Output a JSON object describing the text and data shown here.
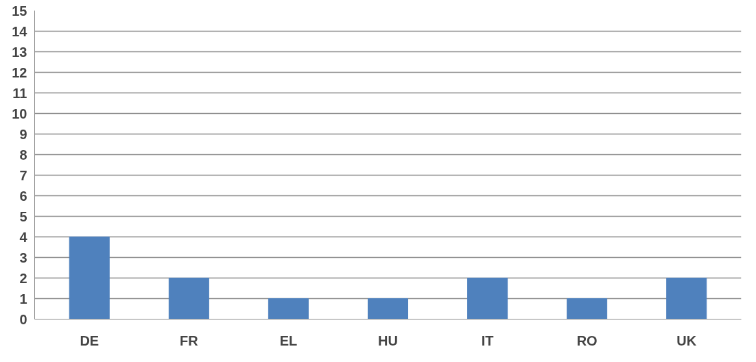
{
  "chart_data": {
    "type": "bar",
    "categories": [
      "DE",
      "FR",
      "EL",
      "HU",
      "IT",
      "RO",
      "UK"
    ],
    "values": [
      4,
      2,
      1,
      1,
      2,
      1,
      2
    ],
    "color": "#4f81bd",
    "ylim": [
      0,
      15
    ],
    "yticks": [
      0,
      1,
      2,
      3,
      4,
      5,
      6,
      7,
      8,
      9,
      10,
      11,
      12,
      13,
      14,
      15
    ],
    "grid": "y"
  }
}
